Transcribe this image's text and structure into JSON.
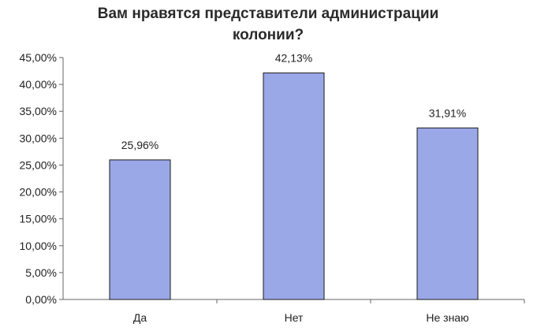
{
  "chart_data": {
    "type": "bar",
    "title": [
      "Вам нравятся представители администрации",
      "колонии?"
    ],
    "xlabel": "",
    "ylabel": "",
    "categories": [
      "Да",
      "Нет",
      "Не знаю"
    ],
    "values": [
      25.96,
      42.13,
      31.91
    ],
    "data_labels": [
      "25,96%",
      "42,13%",
      "31,91%"
    ],
    "ylim": [
      0,
      45
    ],
    "yticks": [
      0,
      5,
      10,
      15,
      20,
      25,
      30,
      35,
      40,
      45
    ],
    "ytick_labels": [
      "0,00%",
      "5,00%",
      "10,00%",
      "15,00%",
      "20,00%",
      "25,00%",
      "30,00%",
      "35,00%",
      "40,00%",
      "45,00%"
    ],
    "grid": false,
    "legend": "none",
    "colors": {
      "bar_fill": "#9aa8e8",
      "bar_stroke": "#1a1a1a",
      "plot_bg": "#ffffff",
      "axis": "#666666"
    }
  }
}
